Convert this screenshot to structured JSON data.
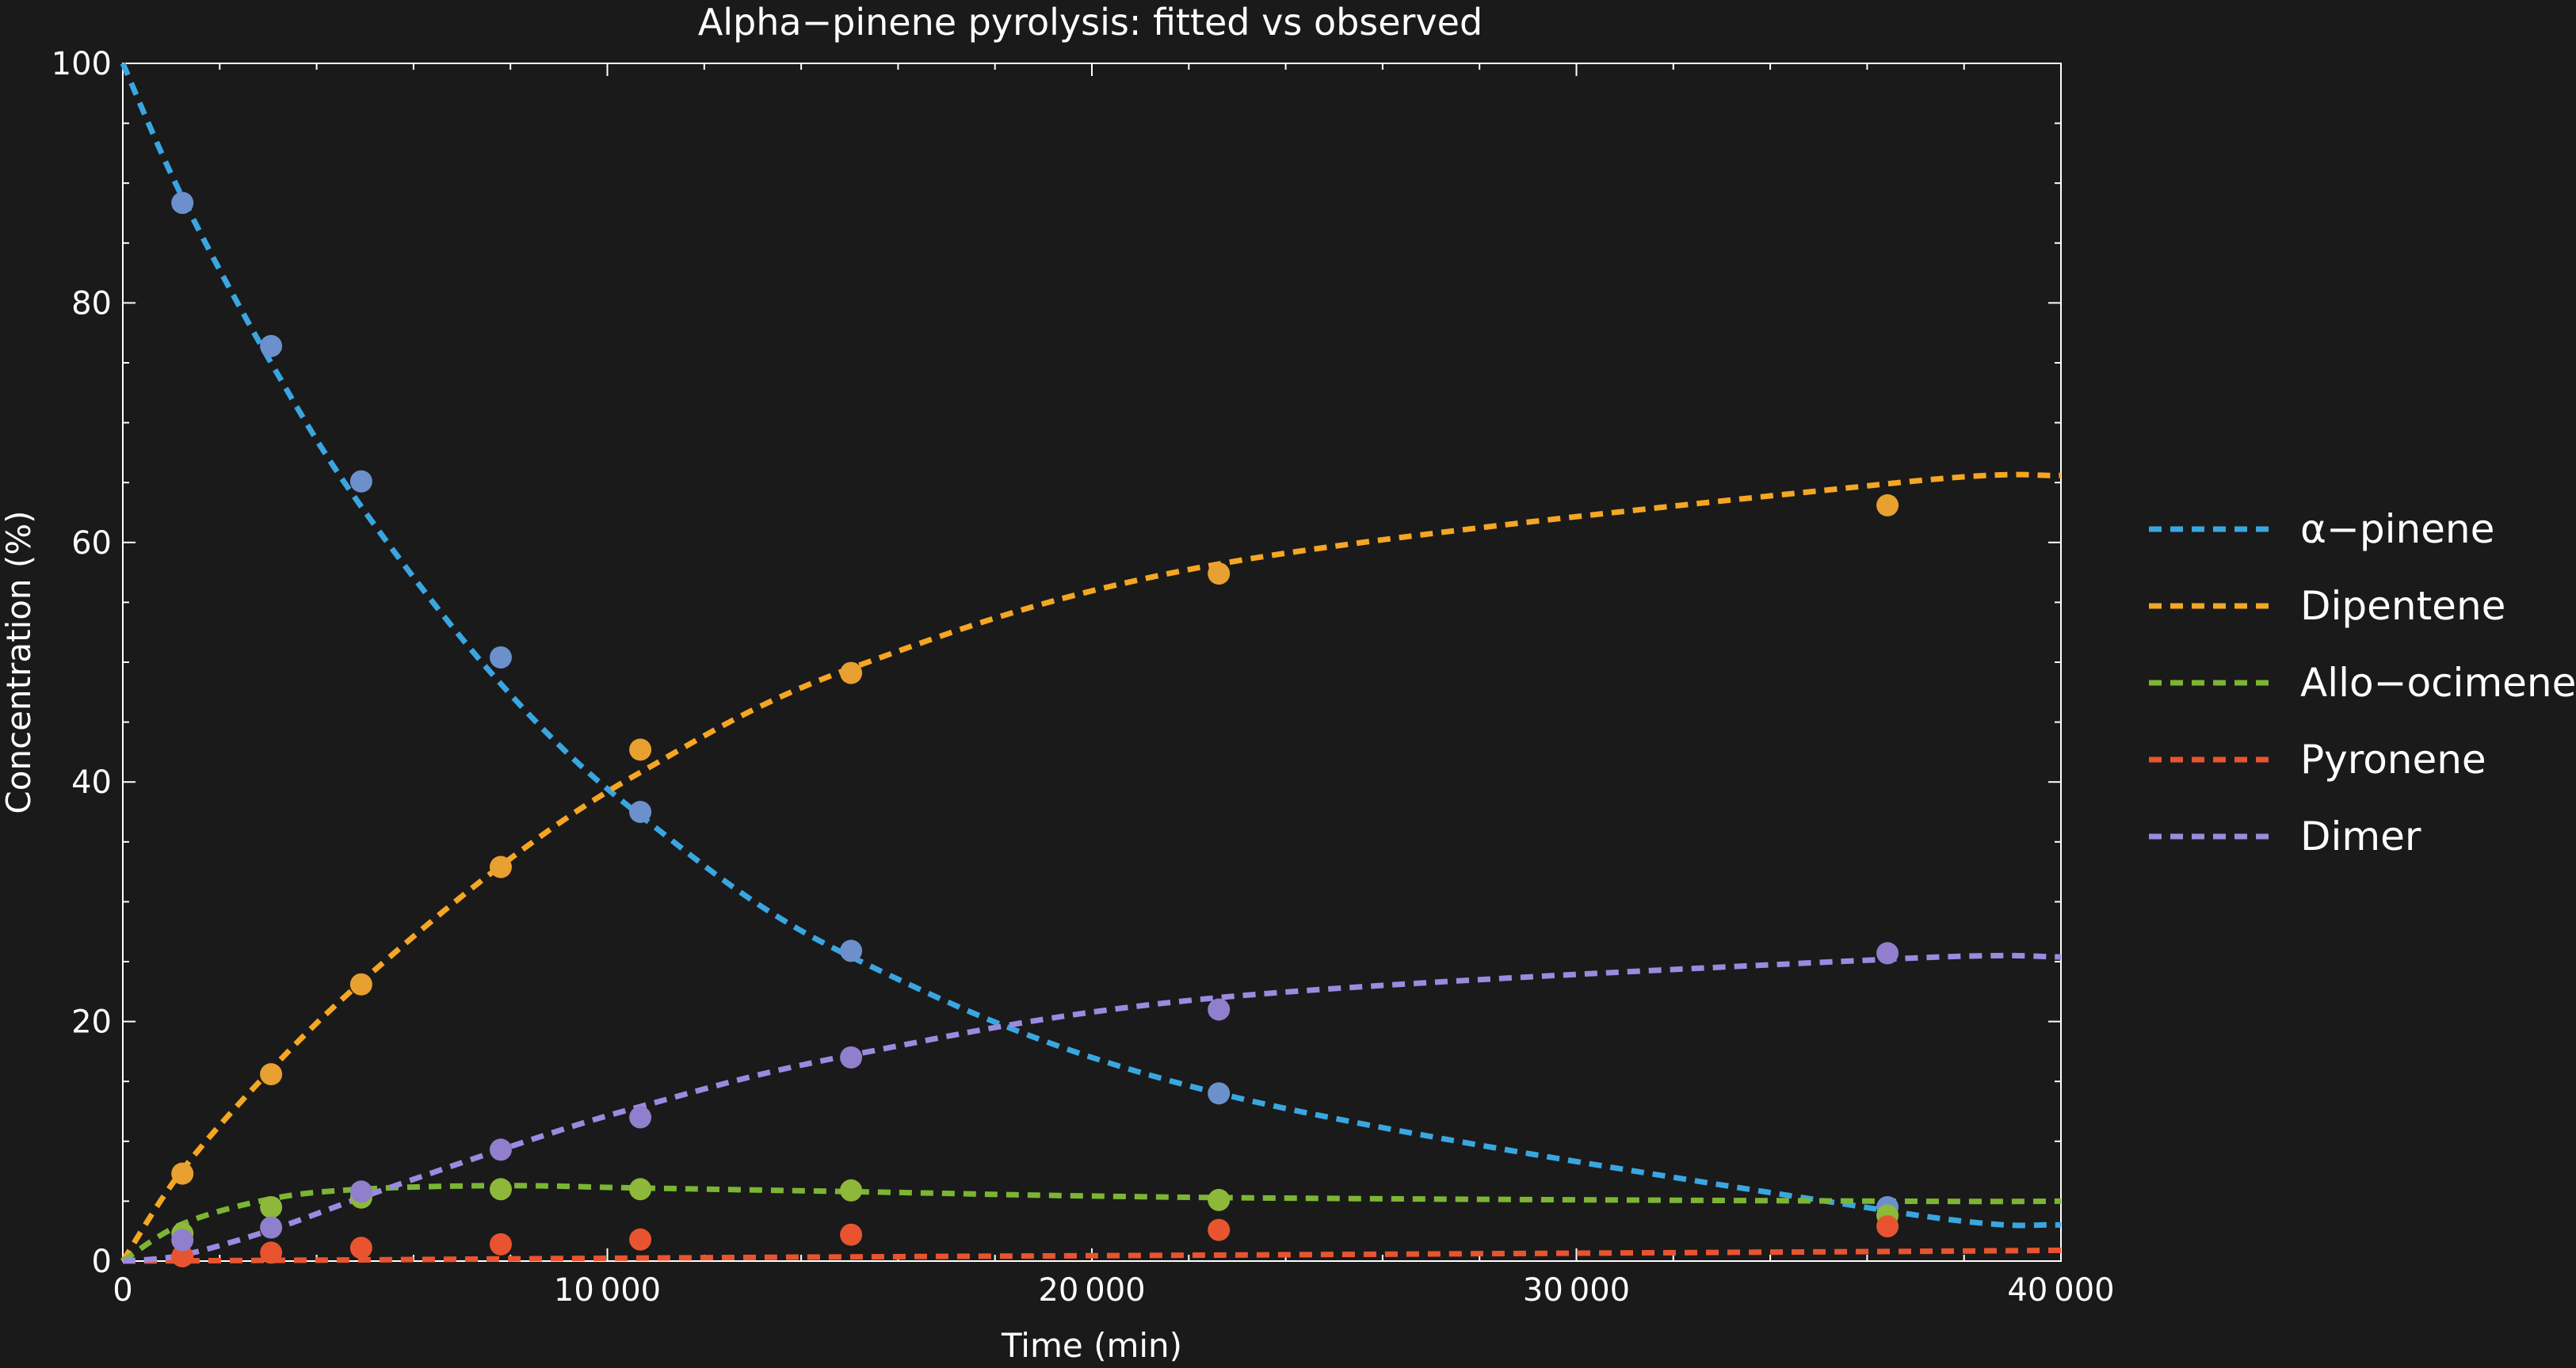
{
  "chart_data": {
    "type": "line",
    "title": "Alpha−pinene pyrolysis: fitted vs observed",
    "xlabel": "Time (min)",
    "ylabel": "Concentration (%)",
    "xlim": [
      0,
      40000
    ],
    "ylim": [
      0,
      100
    ],
    "xticks": [
      0,
      10000,
      20000,
      30000,
      40000
    ],
    "xtick_labels": [
      "0",
      "10 000",
      "20 000",
      "30 000",
      "40 000"
    ],
    "yticks": [
      0,
      20,
      40,
      60,
      80,
      100
    ],
    "ytick_labels": [
      "0",
      "20",
      "40",
      "60",
      "80",
      "100"
    ],
    "legend_position": "right",
    "grid": false,
    "series": [
      {
        "name": "α−pinene",
        "line_color": "#3aa6e0",
        "point_color": "#6b90cc",
        "fitted": {
          "x": [
            0,
            1230,
            3060,
            4920,
            7800,
            10680,
            15030,
            22620,
            36420,
            40000
          ],
          "y": [
            100,
            88.8,
            75.0,
            63.0,
            48.2,
            37.2,
            25.4,
            14.0,
            4.2,
            3.0
          ]
        },
        "observed": {
          "x": [
            1230,
            3060,
            4920,
            7800,
            10680,
            15030,
            22620,
            36420
          ],
          "y": [
            88.35,
            76.4,
            65.1,
            50.4,
            37.5,
            25.9,
            14.0,
            4.5
          ]
        }
      },
      {
        "name": "Dipentene",
        "line_color": "#f5a623",
        "point_color": "#e8a030",
        "fitted": {
          "x": [
            0,
            1230,
            3060,
            4920,
            7800,
            10680,
            15030,
            22620,
            36420,
            40000
          ],
          "y": [
            0,
            7.6,
            16.0,
            23.3,
            33.0,
            40.8,
            49.5,
            58.2,
            64.9,
            65.6
          ]
        },
        "observed": {
          "x": [
            1230,
            3060,
            4920,
            7800,
            10680,
            15030,
            22620,
            36420
          ],
          "y": [
            7.3,
            15.6,
            23.1,
            32.9,
            42.7,
            49.1,
            57.4,
            63.1
          ]
        }
      },
      {
        "name": "Allo−ocimene",
        "line_color": "#7cb534",
        "point_color": "#8db83a",
        "fitted": {
          "x": [
            0,
            1230,
            3060,
            4920,
            7800,
            10680,
            15030,
            22620,
            36420,
            40000
          ],
          "y": [
            0,
            3.1,
            5.2,
            6.0,
            6.3,
            6.1,
            5.8,
            5.3,
            5.0,
            5.0
          ]
        },
        "observed": {
          "x": [
            1230,
            3060,
            4920,
            7800,
            10680,
            15030,
            22620,
            36420
          ],
          "y": [
            2.3,
            4.5,
            5.3,
            6.0,
            6.0,
            5.9,
            5.1,
            3.8
          ]
        }
      },
      {
        "name": "Pyronene",
        "line_color": "#e8542f",
        "point_color": "#e8542f",
        "fitted": {
          "x": [
            0,
            1230,
            3060,
            4920,
            7800,
            10680,
            15030,
            22620,
            36420,
            40000
          ],
          "y": [
            0,
            0.02,
            0.06,
            0.1,
            0.18,
            0.25,
            0.35,
            0.5,
            0.8,
            0.9
          ]
        },
        "observed": {
          "x": [
            1230,
            3060,
            4920,
            7800,
            10680,
            15030,
            22620,
            36420
          ],
          "y": [
            0.4,
            0.7,
            1.1,
            1.4,
            1.8,
            2.2,
            2.6,
            2.9
          ]
        }
      },
      {
        "name": "Dimer",
        "line_color": "#9a8be0",
        "point_color": "#8f7fcc",
        "fitted": {
          "x": [
            0,
            1230,
            3060,
            4920,
            7800,
            10680,
            15030,
            22620,
            36420,
            40000
          ],
          "y": [
            0,
            0.5,
            2.6,
            5.3,
            9.3,
            12.9,
            17.2,
            22.0,
            25.2,
            25.4
          ]
        },
        "observed": {
          "x": [
            1230,
            3060,
            4920,
            7800,
            10680,
            15030,
            22620,
            36420
          ],
          "y": [
            1.75,
            2.8,
            5.8,
            9.3,
            12.0,
            17.0,
            21.0,
            25.7
          ]
        }
      }
    ]
  }
}
